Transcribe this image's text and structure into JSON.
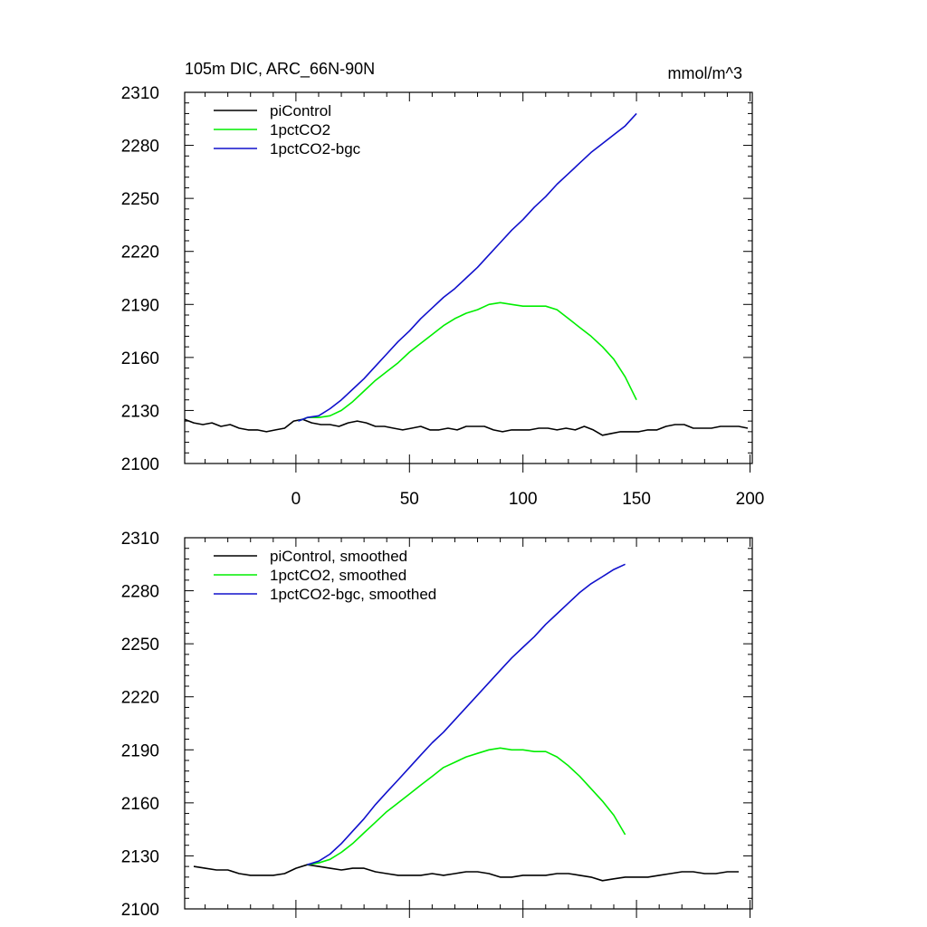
{
  "title_left": "105m DIC, ARC_66N-90N",
  "title_right": "mmol/m^3",
  "colors": {
    "piControl": "#000000",
    "1pctCO2": "#00ee00",
    "1pctCO2-bgc": "#1010cc"
  },
  "chart_data": [
    {
      "type": "line",
      "xlim": [
        -49,
        201
      ],
      "ylim": [
        2100,
        2310
      ],
      "yticks": [
        2100,
        2130,
        2160,
        2190,
        2220,
        2250,
        2280,
        2310
      ],
      "ytick_labels": [
        "2100",
        "2130",
        "2160",
        "2190",
        "2220",
        "2250",
        "2280",
        "2310"
      ],
      "xticks": [
        0,
        50,
        100,
        150,
        200
      ],
      "xtick_labels": [
        "0",
        "50",
        "100",
        "150",
        "200"
      ],
      "grid": false,
      "legend_position": "top-left",
      "series": [
        {
          "name": "piControl",
          "color_key": "piControl",
          "x": [
            -49,
            -45,
            -41,
            -37,
            -33,
            -29,
            -25,
            -21,
            -17,
            -13,
            -9,
            -5,
            -1,
            3,
            7,
            11,
            15,
            19,
            23,
            27,
            31,
            35,
            39,
            43,
            47,
            51,
            55,
            59,
            63,
            67,
            71,
            75,
            79,
            83,
            87,
            91,
            95,
            99,
            103,
            107,
            111,
            115,
            119,
            123,
            127,
            131,
            135,
            139,
            143,
            147,
            151,
            155,
            159,
            163,
            167,
            171,
            175,
            179,
            183,
            187,
            191,
            195,
            199
          ],
          "y": [
            2125,
            2123,
            2122,
            2123,
            2121,
            2122,
            2120,
            2119,
            2119,
            2118,
            2119,
            2120,
            2124,
            2125,
            2123,
            2122,
            2122,
            2121,
            2123,
            2124,
            2123,
            2121,
            2121,
            2120,
            2119,
            2120,
            2121,
            2119,
            2119,
            2120,
            2119,
            2121,
            2121,
            2121,
            2119,
            2118,
            2119,
            2119,
            2119,
            2120,
            2120,
            2119,
            2120,
            2119,
            2121,
            2119,
            2116,
            2117,
            2118,
            2118,
            2118,
            2119,
            2119,
            2121,
            2122,
            2122,
            2120,
            2120,
            2120,
            2121,
            2121,
            2121,
            2120
          ]
        },
        {
          "name": "1pctCO2",
          "color_key": "1pctCO2",
          "x": [
            1,
            5,
            10,
            15,
            20,
            25,
            30,
            35,
            40,
            45,
            50,
            55,
            60,
            65,
            70,
            75,
            80,
            85,
            90,
            95,
            100,
            105,
            110,
            115,
            120,
            125,
            130,
            135,
            140,
            145,
            150
          ],
          "y": [
            2124,
            2126,
            2126,
            2127,
            2130,
            2135,
            2141,
            2147,
            2152,
            2157,
            2163,
            2168,
            2173,
            2178,
            2182,
            2185,
            2187,
            2190,
            2191,
            2190,
            2189,
            2189,
            2189,
            2187,
            2182,
            2177,
            2172,
            2166,
            2159,
            2149,
            2136
          ]
        },
        {
          "name": "1pctCO2-bgc",
          "color_key": "1pctCO2-bgc",
          "x": [
            1,
            5,
            10,
            15,
            20,
            25,
            30,
            35,
            40,
            45,
            50,
            55,
            60,
            65,
            70,
            75,
            80,
            85,
            90,
            95,
            100,
            105,
            110,
            115,
            120,
            125,
            130,
            135,
            140,
            145,
            150
          ],
          "y": [
            2124,
            2126,
            2127,
            2131,
            2136,
            2142,
            2148,
            2155,
            2162,
            2169,
            2175,
            2182,
            2188,
            2194,
            2199,
            2205,
            2211,
            2218,
            2225,
            2232,
            2238,
            2245,
            2251,
            2258,
            2264,
            2270,
            2276,
            2281,
            2286,
            2291,
            2298
          ]
        }
      ]
    },
    {
      "type": "line",
      "xlim": [
        -49,
        201
      ],
      "ylim": [
        2100,
        2310
      ],
      "yticks": [
        2100,
        2130,
        2160,
        2190,
        2220,
        2250,
        2280,
        2310
      ],
      "ytick_labels": [
        "2100",
        "2130",
        "2160",
        "2190",
        "2220",
        "2250",
        "2280",
        "2310"
      ],
      "xticks": [
        0,
        50,
        100,
        150,
        200
      ],
      "grid": false,
      "legend_position": "top-left",
      "series": [
        {
          "name": "piControl, smoothed",
          "color_key": "piControl",
          "x": [
            -45,
            -40,
            -35,
            -30,
            -25,
            -20,
            -15,
            -10,
            -5,
            0,
            5,
            10,
            15,
            20,
            25,
            30,
            35,
            40,
            45,
            50,
            55,
            60,
            65,
            70,
            75,
            80,
            85,
            90,
            95,
            100,
            105,
            110,
            115,
            120,
            125,
            130,
            135,
            140,
            145,
            150,
            155,
            160,
            165,
            170,
            175,
            180,
            185,
            190,
            195
          ],
          "y": [
            2124,
            2123,
            2122,
            2122,
            2120,
            2119,
            2119,
            2119,
            2120,
            2123,
            2125,
            2124,
            2123,
            2122,
            2123,
            2123,
            2121,
            2120,
            2119,
            2119,
            2119,
            2120,
            2119,
            2120,
            2121,
            2121,
            2120,
            2118,
            2118,
            2119,
            2119,
            2119,
            2120,
            2120,
            2119,
            2118,
            2116,
            2117,
            2118,
            2118,
            2118,
            2119,
            2120,
            2121,
            2121,
            2120,
            2120,
            2121,
            2121
          ]
        },
        {
          "name": "1pctCO2, smoothed",
          "color_key": "1pctCO2",
          "x": [
            5,
            10,
            15,
            20,
            25,
            30,
            35,
            40,
            45,
            50,
            55,
            60,
            65,
            70,
            75,
            80,
            85,
            90,
            95,
            100,
            105,
            110,
            115,
            120,
            125,
            130,
            135,
            140,
            145
          ],
          "y": [
            2125,
            2126,
            2128,
            2132,
            2137,
            2143,
            2149,
            2155,
            2160,
            2165,
            2170,
            2175,
            2180,
            2183,
            2186,
            2188,
            2190,
            2191,
            2190,
            2190,
            2189,
            2189,
            2186,
            2181,
            2175,
            2168,
            2161,
            2153,
            2142
          ]
        },
        {
          "name": "1pctCO2-bgc, smoothed",
          "color_key": "1pctCO2-bgc",
          "x": [
            5,
            10,
            15,
            20,
            25,
            30,
            35,
            40,
            45,
            50,
            55,
            60,
            65,
            70,
            75,
            80,
            85,
            90,
            95,
            100,
            105,
            110,
            115,
            120,
            125,
            130,
            135,
            140,
            145
          ],
          "y": [
            2125,
            2127,
            2131,
            2137,
            2144,
            2151,
            2159,
            2166,
            2173,
            2180,
            2187,
            2194,
            2200,
            2207,
            2214,
            2221,
            2228,
            2235,
            2242,
            2248,
            2254,
            2261,
            2267,
            2273,
            2279,
            2284,
            2288,
            2292,
            2295
          ]
        }
      ]
    }
  ]
}
